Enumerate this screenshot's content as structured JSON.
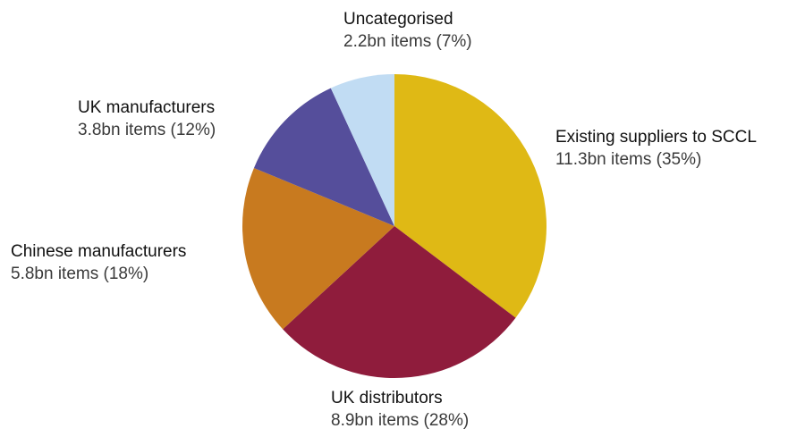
{
  "chart_data": {
    "type": "pie",
    "title": "",
    "start_angle_deg": 0,
    "direction": "clockwise",
    "slices": [
      {
        "name": "Existing suppliers to SCCL",
        "value": 11.3,
        "label": "11.3bn items (35%)",
        "percent": 35,
        "color": "#dfb915"
      },
      {
        "name": "UK distributors",
        "value": 8.9,
        "label": "8.9bn items (28%)",
        "percent": 28,
        "color": "#8f1c3c"
      },
      {
        "name": "Chinese manufacturers",
        "value": 5.8,
        "label": "5.8bn items (18%)",
        "percent": 18,
        "color": "#c87a1f"
      },
      {
        "name": "UK manufacturers",
        "value": 3.8,
        "label": "3.8bn items (12%)",
        "percent": 12,
        "color": "#554e9b"
      },
      {
        "name": "Uncategorised",
        "value": 2.2,
        "label": "2.2bn items (7%)",
        "percent": 7,
        "color": "#c1dcf3"
      }
    ]
  }
}
